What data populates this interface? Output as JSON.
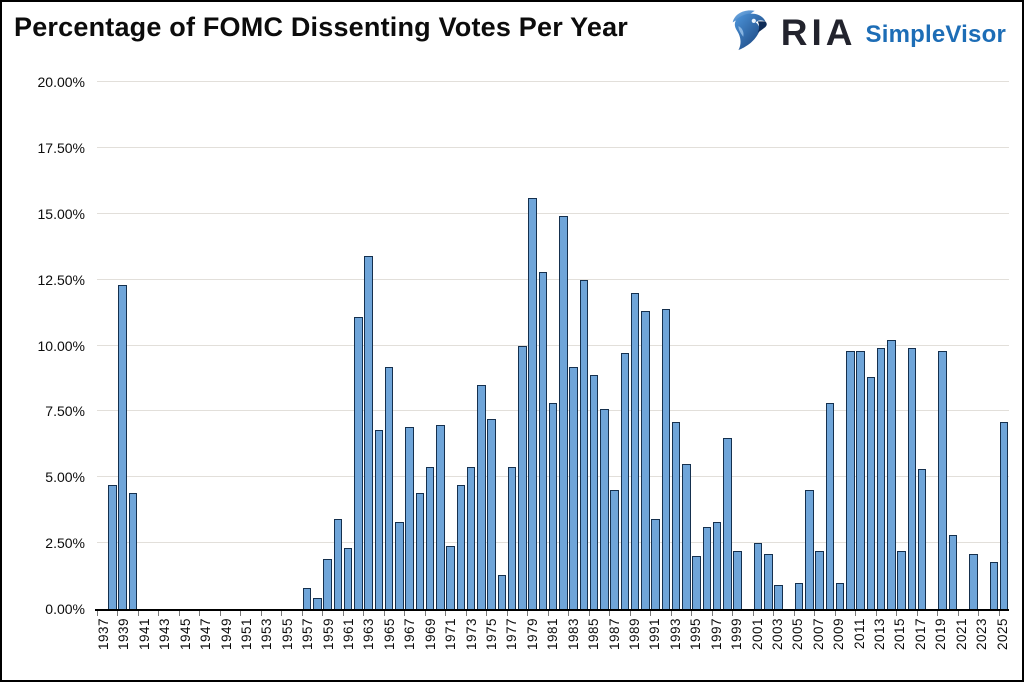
{
  "header": {
    "title": "Percentage of FOMC Dissenting Votes Per Year",
    "logo": {
      "brand": "RIA",
      "product": "SimpleVisor"
    }
  },
  "colors": {
    "bar_fill": "#6fa5d9",
    "bar_border": "#15304e",
    "gridline": "#e2dfda",
    "axis": "#000000",
    "logo_dark": "#22232d",
    "logo_blue": "#1d6db6",
    "eagle_blue_light": "#4e97dd",
    "eagle_blue_dark": "#143a72"
  },
  "chart_data": {
    "type": "bar",
    "title": "Percentage of FOMC Dissenting Votes Per Year",
    "xlabel": "",
    "ylabel": "",
    "ylim": [
      0,
      20
    ],
    "grid": true,
    "legend": "none",
    "y_tick_labels": [
      "20.00%",
      "17.50%",
      "15.00%",
      "12.50%",
      "10.00%",
      "7.50%",
      "5.00%",
      "2.50%",
      "0.00%"
    ],
    "x_tick_labels": [
      "1937",
      "1939",
      "1941",
      "1943",
      "1945",
      "1947",
      "1949",
      "1951",
      "1953",
      "1955",
      "1957",
      "1959",
      "1961",
      "1963",
      "1965",
      "1967",
      "1969",
      "1971",
      "1973",
      "1975",
      "1977",
      "1979",
      "1981",
      "1983",
      "1985",
      "1987",
      "1989",
      "1991",
      "1993",
      "1995",
      "1997",
      "1999",
      "2001",
      "2003",
      "2005",
      "2007",
      "2009",
      "2011",
      "2013",
      "2015",
      "2017",
      "2019",
      "2021",
      "2023",
      "2025"
    ],
    "years": [
      1937,
      1938,
      1939,
      1940,
      1941,
      1942,
      1943,
      1944,
      1945,
      1946,
      1947,
      1948,
      1949,
      1950,
      1951,
      1952,
      1953,
      1954,
      1955,
      1956,
      1957,
      1958,
      1959,
      1960,
      1961,
      1962,
      1963,
      1964,
      1965,
      1966,
      1967,
      1968,
      1969,
      1970,
      1971,
      1972,
      1973,
      1974,
      1975,
      1976,
      1977,
      1978,
      1979,
      1980,
      1981,
      1982,
      1983,
      1984,
      1985,
      1986,
      1987,
      1988,
      1989,
      1990,
      1991,
      1992,
      1993,
      1994,
      1995,
      1996,
      1997,
      1998,
      1999,
      2000,
      2001,
      2002,
      2003,
      2004,
      2005,
      2006,
      2007,
      2008,
      2009,
      2010,
      2011,
      2012,
      2013,
      2014,
      2015,
      2016,
      2017,
      2018,
      2019,
      2020,
      2021,
      2022,
      2023,
      2024,
      2025
    ],
    "values": [
      0,
      4.7,
      12.3,
      4.4,
      0,
      0,
      0,
      0,
      0,
      0,
      0,
      0,
      0,
      0,
      0,
      0,
      0,
      0,
      0,
      0,
      0.8,
      0.4,
      1.9,
      3.4,
      2.3,
      11.1,
      13.4,
      6.8,
      9.2,
      3.3,
      6.9,
      4.4,
      5.4,
      7.0,
      2.4,
      4.7,
      5.4,
      8.5,
      7.2,
      1.3,
      5.4,
      10.0,
      15.6,
      12.8,
      7.8,
      14.9,
      9.2,
      12.5,
      8.9,
      7.6,
      4.5,
      9.7,
      12.0,
      11.3,
      3.4,
      11.4,
      7.1,
      5.5,
      2.0,
      3.1,
      3.3,
      6.5,
      2.2,
      0,
      2.5,
      2.1,
      0.9,
      0,
      1.0,
      4.5,
      2.2,
      7.8,
      1.0,
      9.8,
      9.8,
      8.8,
      9.9,
      10.2,
      2.2,
      9.9,
      5.3,
      0,
      9.8,
      2.8,
      0,
      2.1,
      0,
      1.8,
      7.1
    ]
  }
}
